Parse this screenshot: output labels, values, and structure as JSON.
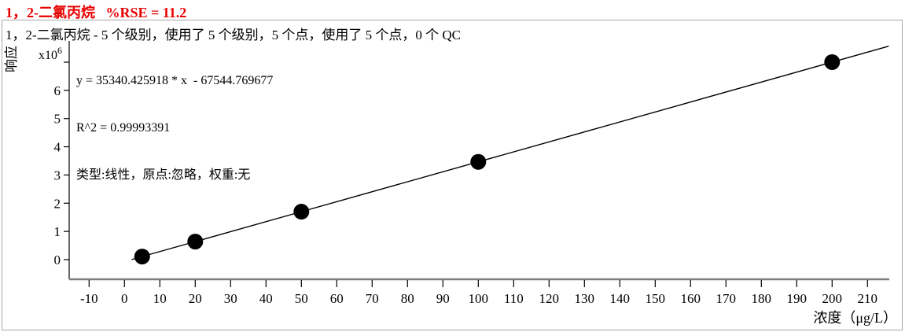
{
  "header": {
    "title": "1，2-二氯丙烷   %RSE = 11.2",
    "title_color": "#e80000"
  },
  "info_line": "1，2-二氯丙烷 - 5 个级别，使用了 5 个级别，5 个点，使用了 5 个点，0 个 QC",
  "equation_box": {
    "equation": "y = 35340.425918 * x  - 67544.769677",
    "r_squared": "R^2 = 0.99993391",
    "model": "类型:线性，原点:忽略，权重:无"
  },
  "chart_data": {
    "type": "scatter",
    "title": "",
    "xlabel": "浓度（μg/L）",
    "ylabel": "响应",
    "y_scale": {
      "base": "x10",
      "exponent": "6"
    },
    "x": [
      5,
      20,
      50,
      100,
      200
    ],
    "y": [
      109157,
      639264,
      1699476,
      3466498,
      7000540
    ],
    "fit": {
      "type_label": "线性",
      "slope": 35340.425918,
      "intercept": -67544.769677,
      "r2": 0.99993391,
      "line_x_range": [
        2,
        216
      ]
    },
    "xlim": [
      -20,
      219
    ],
    "ylim": [
      0,
      7500000
    ],
    "x_ticks": [
      -10,
      0,
      10,
      20,
      30,
      40,
      50,
      60,
      70,
      80,
      90,
      100,
      110,
      120,
      130,
      140,
      150,
      160,
      170,
      180,
      190,
      200,
      210
    ],
    "y_ticks_labeled": [
      0,
      1,
      2,
      3,
      4,
      5,
      6
    ],
    "y_tick_unlabeled": 7,
    "y_unit": 1000000,
    "grid": false,
    "legend": "none",
    "marker_color": "#000000",
    "line_color": "#000000"
  }
}
